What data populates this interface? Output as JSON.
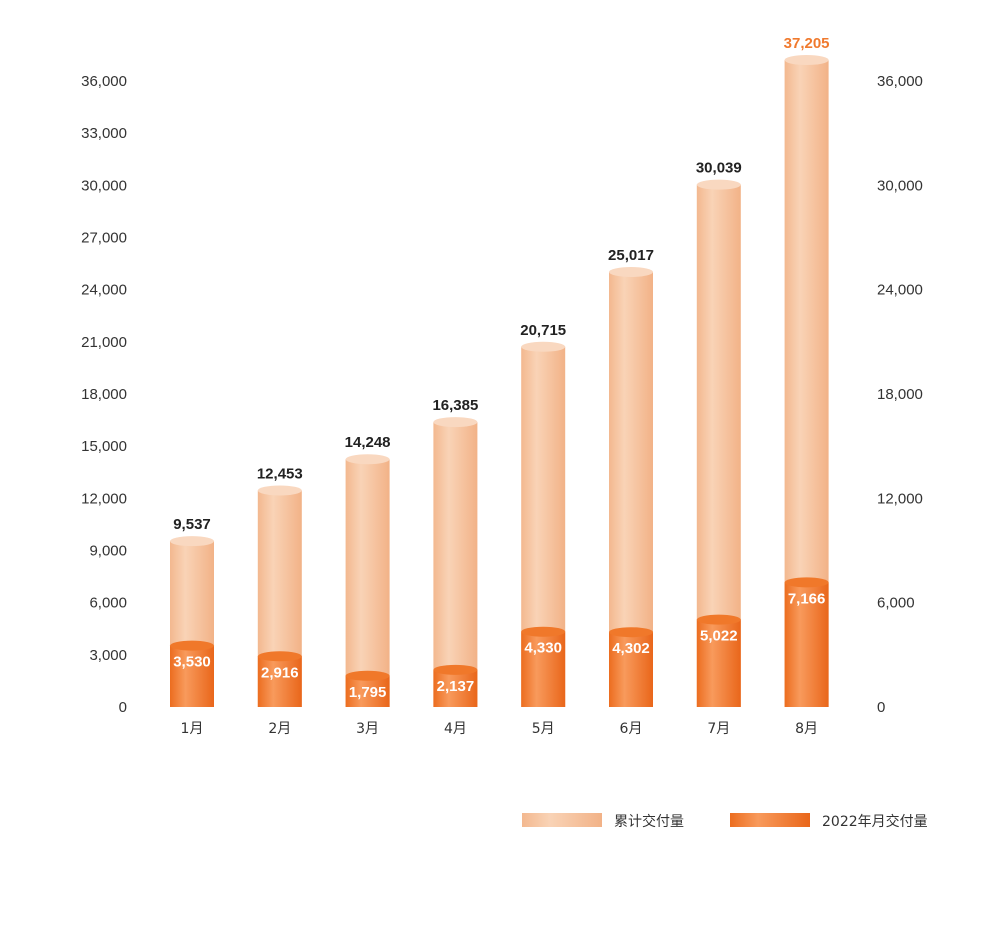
{
  "chart_data": {
    "type": "bar",
    "categories": [
      "1月",
      "2月",
      "3月",
      "4月",
      "5月",
      "6月",
      "7月",
      "8月"
    ],
    "series": [
      {
        "name": "累计交付量",
        "values": [
          9537,
          12453,
          14248,
          16385,
          20715,
          25017,
          30039,
          37205
        ],
        "color": "#f6c29f"
      },
      {
        "name": "2022年月交付量",
        "values": [
          3530,
          2916,
          1795,
          2137,
          4330,
          4302,
          5022,
          7166
        ],
        "color": "#f07a2e"
      }
    ],
    "value_labels": {
      "total": [
        "9,537",
        "12,453",
        "14,248",
        "16,385",
        "20,715",
        "25,017",
        "30,039",
        "37,205"
      ],
      "monthly": [
        "3,530",
        "2,916",
        "1,795",
        "2,137",
        "4,330",
        "4,302",
        "5,022",
        "7,166"
      ]
    },
    "left_axis": {
      "ylim": [
        0,
        36000
      ],
      "ticks": [
        "0",
        "3,000",
        "6,000",
        "9,000",
        "12,000",
        "15,000",
        "18,000",
        "21,000",
        "24,000",
        "27,000",
        "30,000",
        "33,000",
        "36,000"
      ]
    },
    "right_axis": {
      "ylim": [
        0,
        36000
      ],
      "ticks": [
        "0",
        "6,000",
        "12,000",
        "18,000",
        "24,000",
        "30,000",
        "36,000"
      ]
    },
    "grid": false,
    "legend_position": "bottom-right",
    "highlight_color": "#f07a2e"
  }
}
